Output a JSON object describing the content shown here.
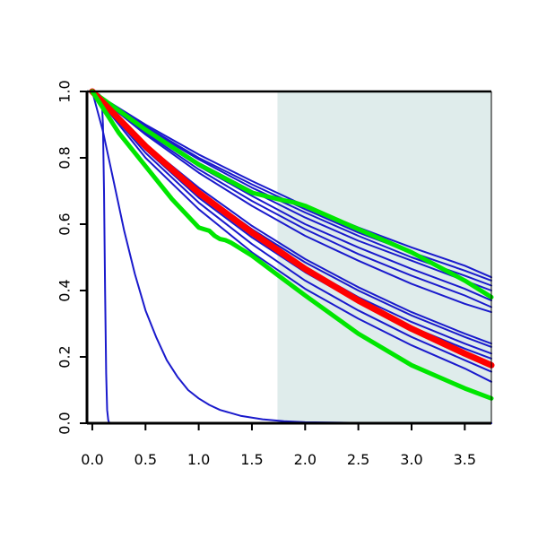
{
  "chart_data": {
    "type": "line",
    "title": "",
    "xlabel": "",
    "ylabel": "",
    "xlim": [
      -0.05,
      3.75
    ],
    "ylim": [
      0.0,
      1.0
    ],
    "x_ticks": [
      0.0,
      0.5,
      1.0,
      1.5,
      2.0,
      2.5,
      3.0,
      3.5
    ],
    "x_tick_labels": [
      "0.0",
      "0.5",
      "1.0",
      "1.5",
      "2.0",
      "2.5",
      "3.0",
      "3.5"
    ],
    "y_ticks": [
      0.0,
      0.2,
      0.4,
      0.6,
      0.8,
      1.0
    ],
    "y_tick_labels": [
      "0.0",
      "0.2",
      "0.4",
      "0.6",
      "0.8",
      "1.0"
    ],
    "shaded_region": {
      "x_from": 1.74,
      "x_to": 3.75,
      "color": "#dfeceb"
    },
    "grid": false,
    "legend": "none",
    "colors": {
      "blue": "#1a1acc",
      "red": "#ff0000",
      "green": "#00e600",
      "axis": "#000000"
    },
    "series": [
      {
        "color": "blue",
        "width": 2,
        "x": [
          0.0,
          0.04,
          0.07,
          0.09,
          0.1,
          0.11,
          0.12,
          0.13,
          0.14,
          0.15,
          0.16,
          0.2,
          3.75
        ],
        "y": [
          1.0,
          0.995,
          0.99,
          0.97,
          0.9,
          0.7,
          0.4,
          0.15,
          0.04,
          0.01,
          0.0,
          0.0,
          0.0
        ]
      },
      {
        "color": "blue",
        "width": 2,
        "x": [
          0.0,
          0.1,
          0.2,
          0.3,
          0.4,
          0.5,
          0.6,
          0.7,
          0.8,
          0.9,
          1.0,
          1.1,
          1.2,
          1.4,
          1.6,
          1.8,
          2.0,
          2.5,
          3.0,
          3.75
        ],
        "y": [
          1.0,
          0.88,
          0.73,
          0.58,
          0.45,
          0.34,
          0.26,
          0.19,
          0.14,
          0.1,
          0.075,
          0.055,
          0.04,
          0.022,
          0.012,
          0.006,
          0.003,
          0.001,
          0.0,
          0.0
        ]
      },
      {
        "color": "blue",
        "width": 2,
        "x": [
          0.0,
          0.5,
          1.0,
          1.5,
          2.0,
          2.5,
          3.0,
          3.5,
          3.75
        ],
        "y": [
          1.0,
          0.9,
          0.81,
          0.73,
          0.655,
          0.59,
          0.53,
          0.475,
          0.44
        ]
      },
      {
        "color": "blue",
        "width": 2,
        "x": [
          0.0,
          0.5,
          1.0,
          1.5,
          2.0,
          2.5,
          3.0,
          3.5,
          3.75
        ],
        "y": [
          1.0,
          0.895,
          0.8,
          0.72,
          0.645,
          0.575,
          0.515,
          0.46,
          0.43
        ]
      },
      {
        "color": "blue",
        "width": 2,
        "x": [
          0.0,
          0.5,
          1.0,
          1.5,
          2.0,
          2.5,
          3.0,
          3.5,
          3.75
        ],
        "y": [
          1.0,
          0.89,
          0.795,
          0.71,
          0.635,
          0.565,
          0.5,
          0.445,
          0.415
        ]
      },
      {
        "color": "blue",
        "width": 2,
        "x": [
          0.0,
          0.5,
          1.0,
          1.5,
          2.0,
          2.5,
          3.0,
          3.5,
          3.75
        ],
        "y": [
          1.0,
          0.885,
          0.785,
          0.7,
          0.62,
          0.55,
          0.49,
          0.43,
          0.4
        ]
      },
      {
        "color": "blue",
        "width": 2,
        "x": [
          0.0,
          0.5,
          1.0,
          1.5,
          2.0,
          2.5,
          3.0,
          3.5,
          3.75
        ],
        "y": [
          1.0,
          0.88,
          0.775,
          0.685,
          0.6,
          0.53,
          0.465,
          0.405,
          0.37
        ]
      },
      {
        "color": "blue",
        "width": 2,
        "x": [
          0.0,
          0.5,
          1.0,
          1.5,
          2.0,
          2.5,
          3.0,
          3.5,
          3.75
        ],
        "y": [
          1.0,
          0.875,
          0.765,
          0.67,
          0.585,
          0.51,
          0.445,
          0.385,
          0.35
        ]
      },
      {
        "color": "blue",
        "width": 2,
        "x": [
          0.0,
          0.5,
          1.0,
          1.5,
          2.0,
          2.5,
          3.0,
          3.5,
          3.75
        ],
        "y": [
          1.0,
          0.87,
          0.755,
          0.655,
          0.565,
          0.49,
          0.42,
          0.36,
          0.335
        ]
      },
      {
        "color": "blue",
        "width": 2,
        "x": [
          0.0,
          0.5,
          1.0,
          1.5,
          2.0,
          2.5,
          3.0,
          3.5,
          3.75
        ],
        "y": [
          1.0,
          0.84,
          0.71,
          0.595,
          0.495,
          0.41,
          0.335,
          0.27,
          0.24
        ]
      },
      {
        "color": "blue",
        "width": 2,
        "x": [
          0.0,
          0.5,
          1.0,
          1.5,
          2.0,
          2.5,
          3.0,
          3.5,
          3.75
        ],
        "y": [
          1.0,
          0.835,
          0.7,
          0.585,
          0.485,
          0.4,
          0.325,
          0.26,
          0.23
        ]
      },
      {
        "color": "blue",
        "width": 2,
        "x": [
          0.0,
          0.5,
          1.0,
          1.5,
          2.0,
          2.5,
          3.0,
          3.5,
          3.75
        ],
        "y": [
          1.0,
          0.83,
          0.69,
          0.57,
          0.47,
          0.38,
          0.305,
          0.24,
          0.21
        ]
      },
      {
        "color": "blue",
        "width": 2,
        "x": [
          0.0,
          0.5,
          1.0,
          1.5,
          2.0,
          2.5,
          3.0,
          3.5,
          3.75
        ],
        "y": [
          1.0,
          0.825,
          0.68,
          0.56,
          0.455,
          0.365,
          0.29,
          0.225,
          0.195
        ]
      },
      {
        "color": "blue",
        "width": 2,
        "x": [
          0.0,
          0.5,
          1.0,
          1.5,
          2.0,
          2.5,
          3.0,
          3.5,
          3.75
        ],
        "y": [
          1.0,
          0.815,
          0.665,
          0.54,
          0.43,
          0.34,
          0.26,
          0.19,
          0.155
        ]
      },
      {
        "color": "blue",
        "width": 2,
        "x": [
          0.0,
          0.5,
          1.0,
          1.5,
          2.0,
          2.5,
          3.0,
          3.5,
          3.75
        ],
        "y": [
          1.0,
          0.8,
          0.645,
          0.515,
          0.405,
          0.315,
          0.235,
          0.165,
          0.125
        ]
      },
      {
        "color": "green",
        "width": 5,
        "x": [
          0.0,
          0.5,
          1.0,
          1.5,
          1.75,
          1.9,
          2.0,
          2.5,
          3.0,
          3.5,
          3.75
        ],
        "y": [
          1.0,
          0.885,
          0.78,
          0.695,
          0.675,
          0.665,
          0.655,
          0.585,
          0.515,
          0.43,
          0.38
        ]
      },
      {
        "color": "red",
        "width": 7,
        "x": [
          0.0,
          0.5,
          1.0,
          1.5,
          2.0,
          2.5,
          3.0,
          3.5,
          3.75
        ],
        "y": [
          1.0,
          0.835,
          0.695,
          0.575,
          0.465,
          0.37,
          0.285,
          0.21,
          0.175
        ]
      },
      {
        "color": "green",
        "width": 5,
        "x": [
          0.0,
          0.25,
          0.5,
          0.75,
          1.0,
          1.05,
          1.1,
          1.15,
          1.2,
          1.25,
          1.3,
          1.5,
          1.75,
          2.0,
          2.5,
          3.0,
          3.5,
          3.75
        ],
        "y": [
          1.0,
          0.875,
          0.775,
          0.675,
          0.59,
          0.585,
          0.58,
          0.565,
          0.555,
          0.552,
          0.545,
          0.505,
          0.445,
          0.385,
          0.27,
          0.175,
          0.105,
          0.075
        ]
      }
    ]
  }
}
